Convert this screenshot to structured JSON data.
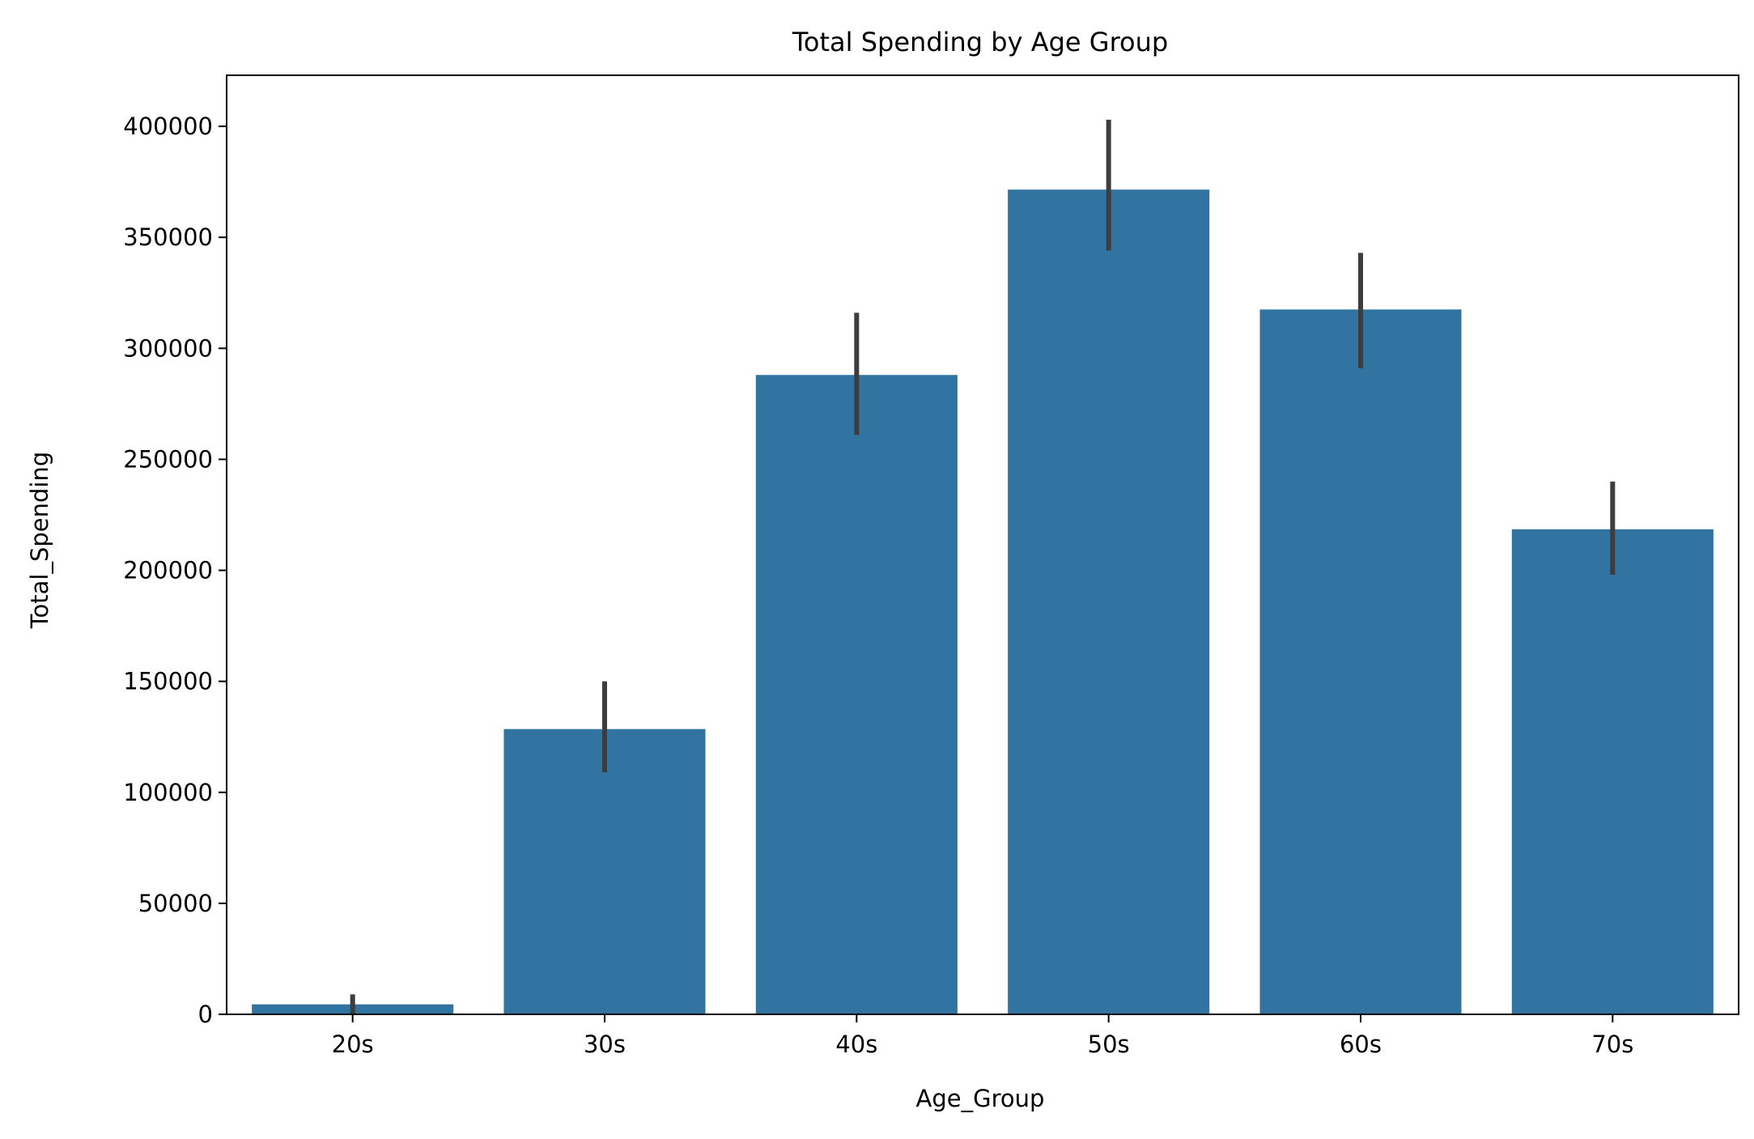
{
  "chart_data": {
    "type": "bar",
    "title": "Total Spending by Age Group",
    "xlabel": "Age_Group",
    "ylabel": "Total_Spending",
    "categories": [
      "20s",
      "30s",
      "40s",
      "50s",
      "60s",
      "70s"
    ],
    "values": [
      4500,
      128500,
      288000,
      371500,
      317500,
      218500
    ],
    "error_low": [
      0,
      109000,
      261000,
      344000,
      291000,
      198000
    ],
    "error_high": [
      9000,
      150000,
      316000,
      403000,
      343000,
      240000
    ],
    "yticks": [
      0,
      50000,
      100000,
      150000,
      200000,
      250000,
      300000,
      350000,
      400000
    ],
    "ytick_labels": [
      "0",
      "50000",
      "100000",
      "150000",
      "200000",
      "250000",
      "300000",
      "350000",
      "400000"
    ],
    "ylim": [
      0,
      423000
    ],
    "grid": false,
    "legend": "none",
    "colors": {
      "bar": "#3274a1",
      "error_bar": "#3d3d3d",
      "axis": "#000000"
    }
  }
}
